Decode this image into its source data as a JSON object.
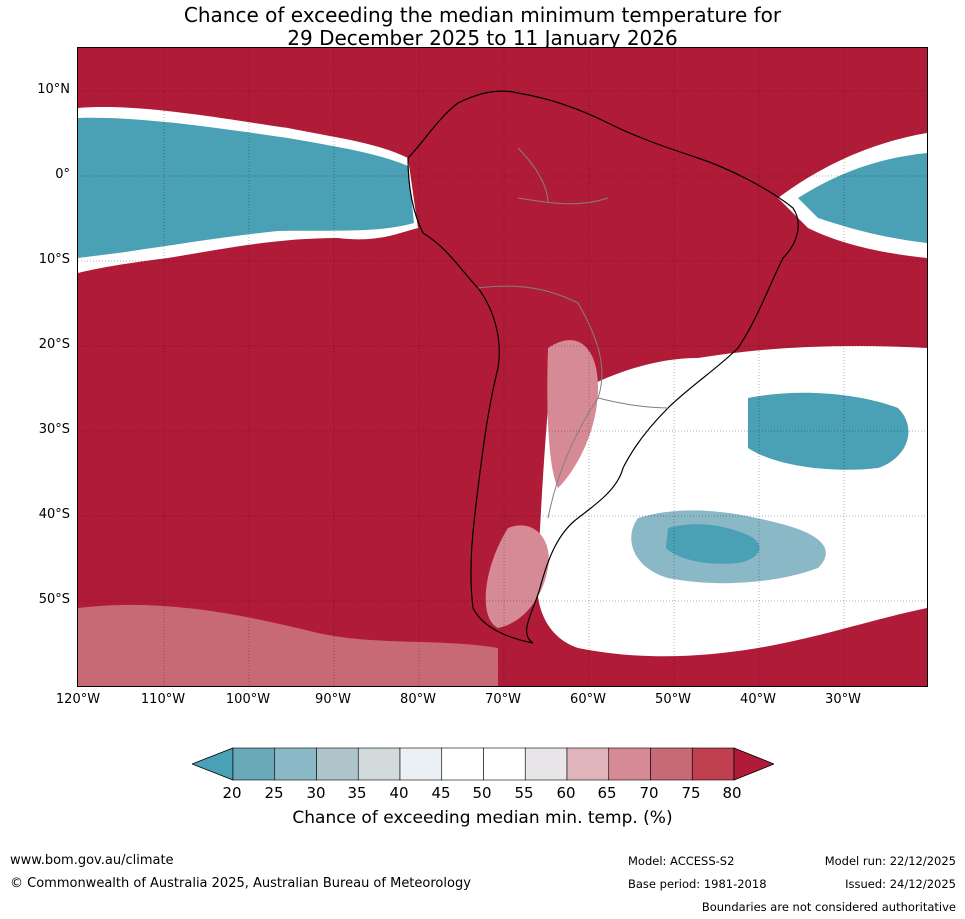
{
  "title": {
    "line1": "Chance of exceeding the median minimum temperature for",
    "line2": "29 December 2025 to 11 January 2026"
  },
  "map": {
    "lat_labels": [
      "10°N",
      "0°",
      "10°S",
      "20°S",
      "30°S",
      "40°S",
      "50°S"
    ],
    "lon_labels": [
      "120°W",
      "110°W",
      "100°W",
      "90°W",
      "80°W",
      "70°W",
      "60°W",
      "50°W",
      "40°W",
      "30°W"
    ],
    "colors": {
      "above": "#b01c37",
      "below": "#4aa0b4",
      "near_white": "#ffffff"
    }
  },
  "colorbar": {
    "ticks": [
      "20",
      "25",
      "30",
      "35",
      "40",
      "45",
      "50",
      "55",
      "60",
      "65",
      "70",
      "75",
      "80"
    ],
    "colors": [
      "#4aa0b4",
      "#6aa9b8",
      "#8ab8c6",
      "#aec4ca",
      "#d3dadc",
      "#eaf0f3",
      "#ffffff",
      "#ffffff",
      "#e8e6e8",
      "#e0b4bb",
      "#d58a95",
      "#c86a76",
      "#c0404f",
      "#b01c37"
    ],
    "label": "Chance of exceeding median min. temp. (%)"
  },
  "footer": {
    "url": "www.bom.gov.au/climate",
    "copyright": "© Commonwealth of Australia 2025, Australian Bureau of Meteorology",
    "model": "Model: ACCESS-S2",
    "base_period": "Base period: 1981-2018",
    "model_run": "Model run: 22/12/2025",
    "issued": "Issued: 24/12/2025",
    "disclaimer": "Boundaries are not considered authoritative"
  }
}
